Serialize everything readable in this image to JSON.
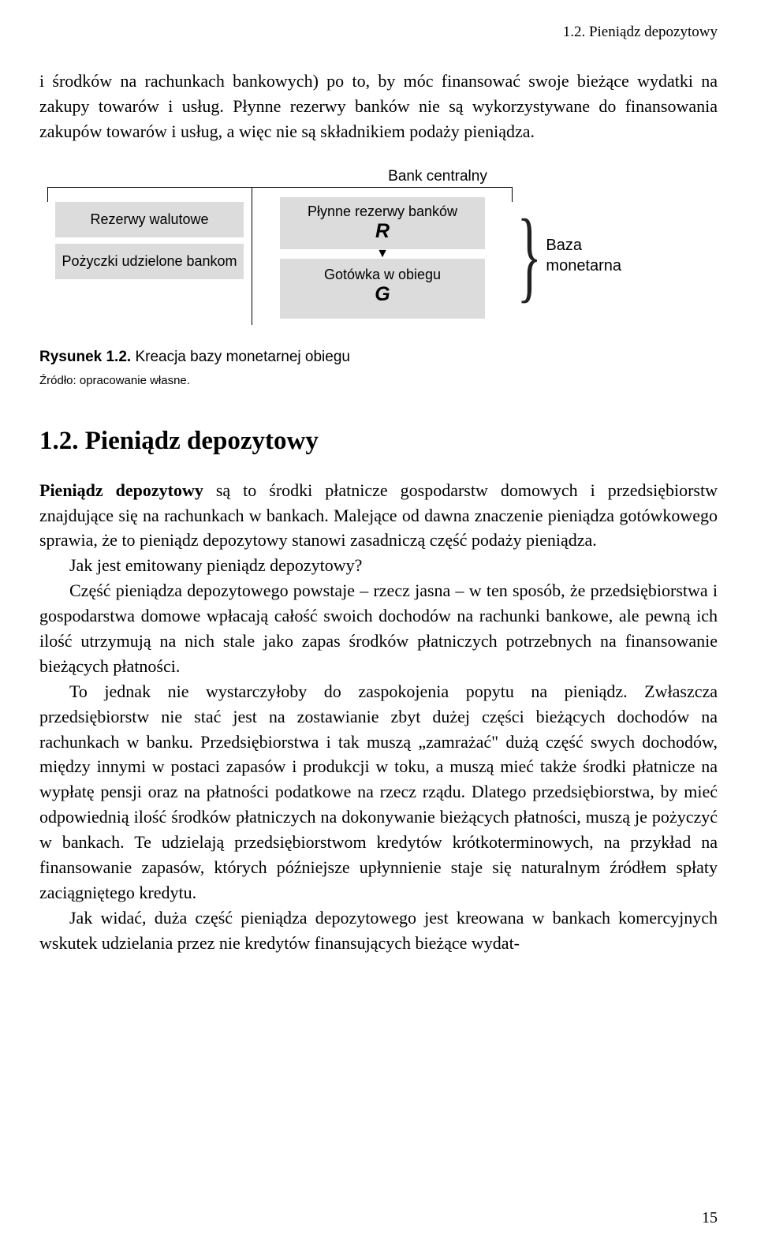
{
  "header": {
    "right": "1.2. Pieniądz depozytowy"
  },
  "para1": "i środków na rachunkach bankowych) po to, by móc finansować swoje bieżące wydatki na zakupy towarów i usług. Płynne rezerwy banków nie są wykorzystywane do finansowania zakupów towarów i usług, a więc nie są składnikiem podaży pieniądza.",
  "diagram": {
    "title": "Bank centralny",
    "left_box_1": "Rezerwy walutowe",
    "left_box_2": "Pożyczki udzielone bankom",
    "center_top_label": "Płynne rezerwy banków",
    "center_top_symbol": "R",
    "center_bottom_label": "Gotówka w obiegu",
    "center_bottom_symbol": "G",
    "right_label_1": "Baza",
    "right_label_2": "monetarna",
    "box_bg": "#dcdcdc"
  },
  "figure": {
    "caption_bold": "Rysunek 1.2.",
    "caption_rest": " Kreacja bazy monetarnej obiegu",
    "source": "Źródło: opracowanie własne."
  },
  "section": {
    "heading": "1.2. Pieniądz depozytowy"
  },
  "body": {
    "p1_bold": "Pieniądz depozytowy",
    "p1_rest": " są to środki płatnicze gospodarstw domowych i przedsiębiorstw znajdujące się na rachunkach w bankach. Malejące od dawna znaczenie pieniądza gotówkowego sprawia, że to pieniądz depozytowy stanowi zasadniczą część podaży pieniądza.",
    "p2": "Jak jest emitowany pieniądz depozytowy?",
    "p3": "Część pieniądza depozytowego powstaje – rzecz jasna – w ten sposób, że przedsiębiorstwa i gospodarstwa domowe wpłacają całość swoich dochodów na rachunki bankowe, ale pewną ich ilość utrzymują na nich stale jako zapas środków płatniczych potrzebnych na finansowanie bieżących płatności.",
    "p4": "To jednak nie wystarczyłoby do zaspokojenia popytu na pieniądz. Zwłaszcza przedsiębiorstw nie stać jest na zostawianie zbyt dużej części bieżących dochodów na rachunkach w banku. Przedsiębiorstwa i tak muszą „zamrażać\" dużą część swych dochodów, między innymi w postaci zapasów i produkcji w toku, a muszą mieć także środki płatnicze na wypłatę pensji oraz na płatności podatkowe na rzecz rządu. Dlatego przedsiębiorstwa, by mieć odpowiednią ilość środków płatniczych na dokonywanie bieżących płatności, muszą je pożyczyć w bankach. Te udzielają przedsiębiorstwom kredytów krótkoterminowych, na przykład na finansowanie zapasów, których późniejsze upłynnienie staje się naturalnym źródłem spłaty zaciągniętego kredytu.",
    "p5": "Jak widać, duża część pieniądza depozytowego jest kreowana w bankach komercyjnych wskutek udzielania przez nie kredytów finansujących bieżące wydat-"
  },
  "page_number": "15"
}
